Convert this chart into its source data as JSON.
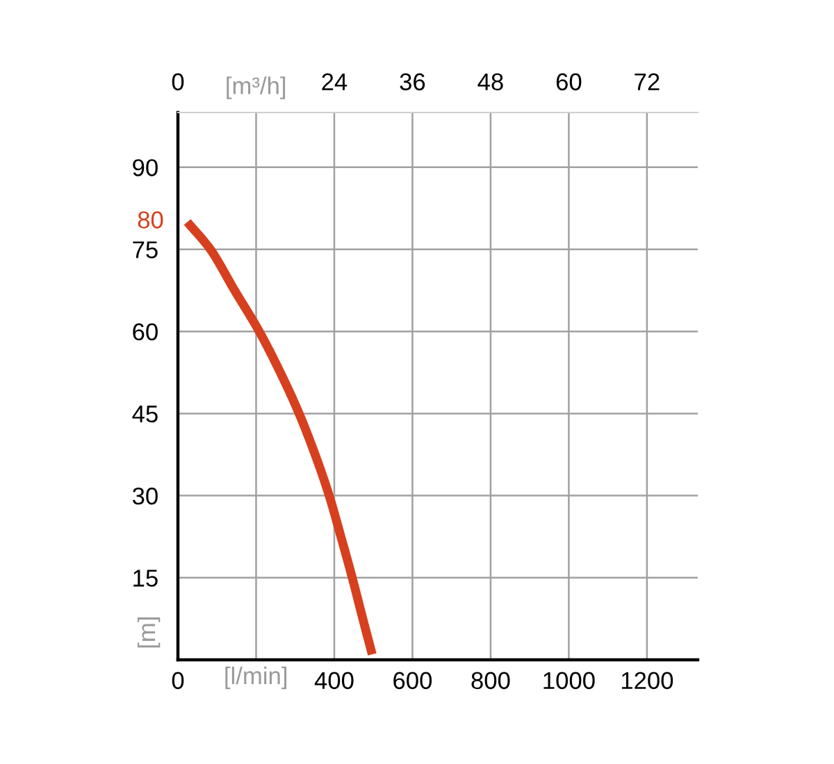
{
  "chart_data": {
    "type": "line",
    "x": [
      24,
      83,
      145,
      208,
      262,
      310,
      351,
      387,
      417,
      446,
      473,
      497
    ],
    "series": [
      {
        "color": "#d6401f",
        "values": [
          80,
          75,
          67.5,
          60,
          52.5,
          45,
          37.5,
          30,
          22.5,
          15,
          7.5,
          1
        ]
      }
    ],
    "xlabel": "[l/min]",
    "x2label": "[m³/h]",
    "ylabel": "[m]",
    "xlim": [
      0,
      1330
    ],
    "xticks": [
      0,
      {
        "value": 200,
        "label": null
      },
      400,
      600,
      800,
      1000,
      1200
    ],
    "x2lim": [
      0,
      79.8
    ],
    "x2ticks": [
      0,
      24,
      36,
      48,
      60,
      72
    ],
    "ylim": [
      0,
      100
    ],
    "yticks": [
      15,
      30,
      45,
      60,
      75,
      90
    ],
    "annotations": [
      "80"
    ],
    "grid": true,
    "line_style": "solid",
    "marker": "none"
  }
}
